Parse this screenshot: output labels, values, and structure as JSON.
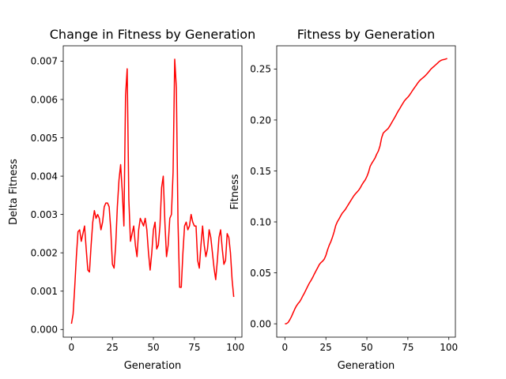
{
  "chart_data": [
    {
      "type": "line",
      "title": "Change in Fitness by Generation",
      "xlabel": "Generation",
      "ylabel": "Delta Fitness",
      "xlim": [
        -5,
        104
      ],
      "ylim": [
        -0.0002,
        0.0074
      ],
      "xticks": [
        0,
        25,
        50,
        75,
        100
      ],
      "xtick_labels": [
        "0",
        "25",
        "50",
        "75",
        "100"
      ],
      "yticks": [
        0,
        0.001,
        0.002,
        0.003,
        0.004,
        0.005,
        0.006,
        0.007
      ],
      "ytick_labels": [
        "0.000",
        "0.001",
        "0.002",
        "0.003",
        "0.004",
        "0.005",
        "0.006",
        "0.007"
      ],
      "grid": false,
      "color": "#ff0000",
      "series": [
        {
          "x": [
            0,
            1,
            2,
            3,
            4,
            5,
            6,
            7,
            8,
            9,
            10,
            11,
            12,
            13,
            14,
            15,
            16,
            17,
            18,
            19,
            20,
            21,
            22,
            23,
            24,
            25,
            26,
            27,
            28,
            29,
            30,
            31,
            32,
            33,
            34,
            35,
            36,
            37,
            38,
            39,
            40,
            41,
            42,
            43,
            44,
            45,
            46,
            47,
            48,
            49,
            50,
            51,
            52,
            53,
            54,
            55,
            56,
            57,
            58,
            59,
            60,
            61,
            62,
            63,
            64,
            65,
            66,
            67,
            68,
            69,
            70,
            71,
            72,
            73,
            74,
            75,
            76,
            77,
            78,
            79,
            80,
            81,
            82,
            83,
            84,
            85,
            86,
            87,
            88,
            89,
            90,
            91,
            92,
            93,
            94,
            95,
            96,
            97,
            98,
            99
          ],
          "values": [
            0.00015,
            0.0004,
            0.0011,
            0.0019,
            0.00255,
            0.0026,
            0.0023,
            0.0025,
            0.0027,
            0.0021,
            0.00155,
            0.0015,
            0.0022,
            0.0028,
            0.0031,
            0.0029,
            0.003,
            0.0029,
            0.0026,
            0.0028,
            0.0032,
            0.0033,
            0.0033,
            0.0032,
            0.0026,
            0.0017,
            0.0016,
            0.0022,
            0.0032,
            0.0039,
            0.0043,
            0.0036,
            0.0027,
            0.0061,
            0.0068,
            0.0034,
            0.0023,
            0.0025,
            0.0027,
            0.0022,
            0.0019,
            0.0026,
            0.0029,
            0.0028,
            0.0027,
            0.0029,
            0.0026,
            0.002,
            0.00155,
            0.002,
            0.0026,
            0.0028,
            0.0021,
            0.0022,
            0.0027,
            0.0037,
            0.004,
            0.0028,
            0.0019,
            0.0022,
            0.0029,
            0.003,
            0.0041,
            0.00705,
            0.0063,
            0.0028,
            0.0011,
            0.0011,
            0.002,
            0.0027,
            0.0028,
            0.0026,
            0.0027,
            0.003,
            0.0028,
            0.0027,
            0.0027,
            0.0018,
            0.0016,
            0.0022,
            0.0027,
            0.0022,
            0.0019,
            0.0021,
            0.0026,
            0.0024,
            0.002,
            0.0016,
            0.0013,
            0.0018,
            0.0024,
            0.0026,
            0.0021,
            0.0017,
            0.0018,
            0.0025,
            0.0024,
            0.002,
            0.0013,
            0.00085
          ]
        }
      ]
    },
    {
      "type": "line",
      "title": "Fitness by Generation",
      "xlabel": "Generation",
      "ylabel": "Fitness",
      "xlim": [
        -5,
        104
      ],
      "ylim": [
        -0.0131,
        0.2728
      ],
      "xticks": [
        0,
        25,
        50,
        75,
        100
      ],
      "xtick_labels": [
        "0",
        "25",
        "50",
        "75",
        "100"
      ],
      "yticks": [
        0,
        0.05,
        0.1,
        0.15,
        0.2,
        0.25
      ],
      "ytick_labels": [
        "0.00",
        "0.05",
        "0.10",
        "0.15",
        "0.20",
        "0.25"
      ],
      "grid": false,
      "color": "#ff0000",
      "series": [
        {
          "x": [
            0,
            1,
            2,
            3,
            4,
            5,
            6,
            7,
            8,
            9,
            10,
            11,
            12,
            13,
            14,
            15,
            16,
            17,
            18,
            19,
            20,
            21,
            22,
            23,
            24,
            25,
            26,
            27,
            28,
            29,
            30,
            31,
            32,
            33,
            34,
            35,
            36,
            37,
            38,
            39,
            40,
            41,
            42,
            43,
            44,
            45,
            46,
            47,
            48,
            49,
            50,
            51,
            52,
            53,
            54,
            55,
            56,
            57,
            58,
            59,
            60,
            61,
            62,
            63,
            64,
            65,
            66,
            67,
            68,
            69,
            70,
            71,
            72,
            73,
            74,
            75,
            76,
            77,
            78,
            79,
            80,
            81,
            82,
            83,
            84,
            85,
            86,
            87,
            88,
            89,
            90,
            91,
            92,
            93,
            94,
            95,
            96,
            97,
            98,
            99
          ],
          "values": [
            0.0,
            0.0002,
            0.0014,
            0.004,
            0.0071,
            0.0108,
            0.0144,
            0.0175,
            0.0198,
            0.0217,
            0.0244,
            0.0276,
            0.0305,
            0.0338,
            0.0371,
            0.0402,
            0.0428,
            0.0457,
            0.049,
            0.0521,
            0.0551,
            0.0582,
            0.0601,
            0.0615,
            0.0635,
            0.0671,
            0.0725,
            0.077,
            0.0805,
            0.085,
            0.0902,
            0.0964,
            0.1002,
            0.1028,
            0.1058,
            0.1086,
            0.1105,
            0.1125,
            0.1152,
            0.1178,
            0.1204,
            0.123,
            0.1255,
            0.1275,
            0.1293,
            0.1311,
            0.1335,
            0.1365,
            0.139,
            0.1412,
            0.1445,
            0.1487,
            0.1545,
            0.1575,
            0.1601,
            0.1627,
            0.1665,
            0.1695,
            0.1745,
            0.1825,
            0.1872,
            0.1888,
            0.1902,
            0.1917,
            0.1942,
            0.197,
            0.1998,
            0.2025,
            0.2055,
            0.2085,
            0.211,
            0.2138,
            0.2164,
            0.219,
            0.2208,
            0.2224,
            0.2244,
            0.2268,
            0.2293,
            0.2316,
            0.2338,
            0.2362,
            0.2383,
            0.2398,
            0.2412,
            0.2425,
            0.2441,
            0.2459,
            0.2478,
            0.2498,
            0.2513,
            0.2527,
            0.2542,
            0.2556,
            0.2572,
            0.2583,
            0.259,
            0.2593,
            0.2598,
            0.2603
          ]
        }
      ]
    }
  ]
}
